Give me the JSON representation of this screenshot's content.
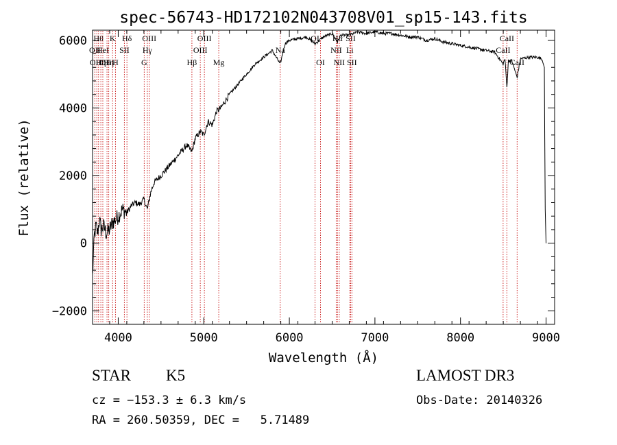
{
  "title": "spec-56743-HD172102N043708V01_sp15-143.fits",
  "info": {
    "object_class": "STAR",
    "subclass": "K5",
    "survey": "LAMOST DR3",
    "cz_line": "cz = −153.3 ± 6.3 km/s",
    "obs_date_line": "Obs-Date: 20140326",
    "radec_line": "RA = 260.50359, DEC =   5.71489"
  },
  "chart_data": {
    "type": "line",
    "title": "spec-56743-HD172102N043708V01_sp15-143.fits",
    "xlabel": "Wavelength (Å)",
    "ylabel": "Flux (relative)",
    "xlim": [
      3700,
      9100
    ],
    "ylim": [
      -2400,
      6300
    ],
    "x_ticks": [
      4000,
      5000,
      6000,
      7000,
      8000,
      9000
    ],
    "y_ticks": [
      -2000,
      0,
      2000,
      4000,
      6000
    ],
    "grid": false,
    "legend": "none",
    "series": [
      {
        "x": [
          3700,
          3720,
          3740,
          3760,
          3780,
          3800,
          3830,
          3860,
          3900,
          3930,
          3970,
          4000,
          4050,
          4100,
          4150,
          4200,
          4250,
          4300,
          4340,
          4380,
          4420,
          4500,
          4600,
          4700,
          4800,
          4861,
          4900,
          4960,
          5000,
          5050,
          5100,
          5150,
          5200,
          5300,
          5400,
          5500,
          5600,
          5700,
          5800,
          5893,
          5950,
          6000,
          6100,
          6200,
          6300,
          6400,
          6500,
          6563,
          6600,
          6700,
          6800,
          6900,
          7000,
          7100,
          7200,
          7300,
          7400,
          7500,
          7600,
          7700,
          7800,
          7900,
          8000,
          8100,
          8200,
          8300,
          8400,
          8498,
          8520,
          8542,
          8560,
          8600,
          8662,
          8700,
          8800,
          8900,
          8950,
          8980,
          8990,
          9000
        ],
        "y": [
          -1000,
          200,
          500,
          300,
          700,
          400,
          500,
          300,
          400,
          600,
          700,
          800,
          1000,
          900,
          1100,
          1200,
          1150,
          1300,
          1000,
          1500,
          1800,
          2000,
          2300,
          2600,
          2900,
          2700,
          3100,
          3300,
          3200,
          3600,
          3500,
          3900,
          4000,
          4400,
          4700,
          5000,
          5300,
          5500,
          5700,
          5300,
          5900,
          6000,
          6050,
          6100,
          5900,
          6100,
          6200,
          5950,
          6150,
          6150,
          6250,
          6200,
          6250,
          6200,
          6200,
          6150,
          6100,
          6100,
          6000,
          6050,
          5950,
          5900,
          5850,
          5800,
          5750,
          5700,
          5650,
          5300,
          5450,
          4600,
          5400,
          5400,
          4900,
          5450,
          5500,
          5500,
          5450,
          5200,
          1000,
          0
        ]
      }
    ],
    "line_colors": {
      "flux": "#000000",
      "markers": "#cc2222"
    },
    "lines": [
      {
        "x": 3727,
        "label": "OII",
        "row": 1
      },
      {
        "x": 3750,
        "label": "OIII",
        "row": 2
      },
      {
        "x": 3770,
        "label": "Hθ",
        "row": 0
      },
      {
        "x": 3797,
        "label": "Hη",
        "row": 2
      },
      {
        "x": 3820,
        "label": "HeI",
        "row": 1
      },
      {
        "x": 3869,
        "label": "OIII",
        "row": 2
      },
      {
        "x": 3889,
        "label": "Hη",
        "row": 2
      },
      {
        "x": 3934,
        "label": "K",
        "row": 0
      },
      {
        "x": 3968,
        "label": "H",
        "row": 2
      },
      {
        "x": 4072,
        "label": "SII",
        "row": 1
      },
      {
        "x": 4102,
        "label": "Hδ",
        "row": 0
      },
      {
        "x": 4304,
        "label": "G",
        "row": 2
      },
      {
        "x": 4340,
        "label": "Hγ",
        "row": 1
      },
      {
        "x": 4363,
        "label": "OIII",
        "row": 0
      },
      {
        "x": 4861,
        "label": "Hβ",
        "row": 2
      },
      {
        "x": 4959,
        "label": "OIII",
        "row": 1
      },
      {
        "x": 5007,
        "label": "OIII",
        "row": 0
      },
      {
        "x": 5175,
        "label": "Mg",
        "row": 2
      },
      {
        "x": 5893,
        "label": "Na",
        "row": 1
      },
      {
        "x": 6300,
        "label": "OI",
        "row": 0
      },
      {
        "x": 6364,
        "label": "OI",
        "row": 2
      },
      {
        "x": 6548,
        "label": "NII",
        "row": 1
      },
      {
        "x": 6563,
        "label": "Hα",
        "row": 0
      },
      {
        "x": 6583,
        "label": "NII",
        "row": 2
      },
      {
        "x": 6707,
        "label": "Li",
        "row": 1
      },
      {
        "x": 6716,
        "label": "SII",
        "row": 0
      },
      {
        "x": 6731,
        "label": "SII",
        "row": 2
      },
      {
        "x": 8498,
        "label": "CaII",
        "row": 1
      },
      {
        "x": 8542,
        "label": "CaII",
        "row": 0
      },
      {
        "x": 8662,
        "label": "CaII",
        "row": 2
      }
    ]
  }
}
